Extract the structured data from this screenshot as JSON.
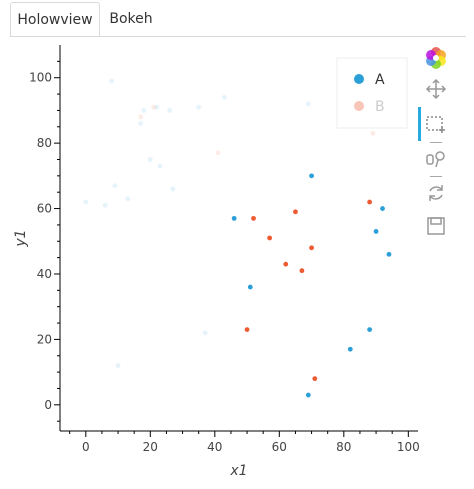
{
  "tabs": [
    {
      "label": "Holowview",
      "active": true
    },
    {
      "label": "Bokeh",
      "active": false
    }
  ],
  "toolbar": {
    "tools": [
      {
        "name": "bokeh-logo-icon",
        "active": false
      },
      {
        "name": "pan-icon",
        "active": false
      },
      {
        "name": "box-select-icon",
        "active": true
      },
      {
        "name": "hover-icon",
        "active": false
      },
      {
        "name": "reset-icon",
        "active": false
      },
      {
        "name": "save-icon",
        "active": false
      }
    ]
  },
  "chart_data": {
    "type": "scatter",
    "xlabel": "x1",
    "ylabel": "y1",
    "xlim": [
      -8,
      103
    ],
    "ylim": [
      -8,
      110
    ],
    "xticks": [
      "0",
      "20",
      "40",
      "60",
      "80",
      "100"
    ],
    "yticks": [
      "0",
      "20",
      "40",
      "60",
      "80",
      "100"
    ],
    "legend": {
      "position": "top-right"
    },
    "selection": {
      "x": [
        45,
        100
      ],
      "y": [
        0,
        75
      ]
    },
    "colors": {
      "A": "#2b9fd8",
      "B": "#ee5a32"
    },
    "series": [
      {
        "name": "A",
        "points": [
          [
            8,
            99
          ],
          [
            18,
            90
          ],
          [
            26,
            90
          ],
          [
            22,
            91
          ],
          [
            35,
            91
          ],
          [
            43,
            94
          ],
          [
            69,
            92
          ],
          [
            9,
            67
          ],
          [
            13,
            63
          ],
          [
            6,
            61
          ],
          [
            0,
            62
          ],
          [
            20,
            75
          ],
          [
            23,
            73
          ],
          [
            27,
            66
          ],
          [
            17,
            86
          ],
          [
            37,
            22
          ],
          [
            10,
            12
          ],
          [
            70,
            70
          ],
          [
            46,
            57
          ],
          [
            92,
            60
          ],
          [
            90,
            53
          ],
          [
            94,
            46
          ],
          [
            51,
            36
          ],
          [
            88,
            23
          ],
          [
            82,
            17
          ],
          [
            69,
            3
          ]
        ]
      },
      {
        "name": "B",
        "points": [
          [
            21,
            91
          ],
          [
            17,
            88
          ],
          [
            41,
            77
          ],
          [
            89,
            83
          ],
          [
            88,
            62
          ],
          [
            65,
            59
          ],
          [
            52,
            57
          ],
          [
            57,
            51
          ],
          [
            70,
            48
          ],
          [
            62,
            43
          ],
          [
            67,
            41
          ],
          [
            50,
            23
          ],
          [
            71,
            8
          ]
        ]
      }
    ]
  }
}
